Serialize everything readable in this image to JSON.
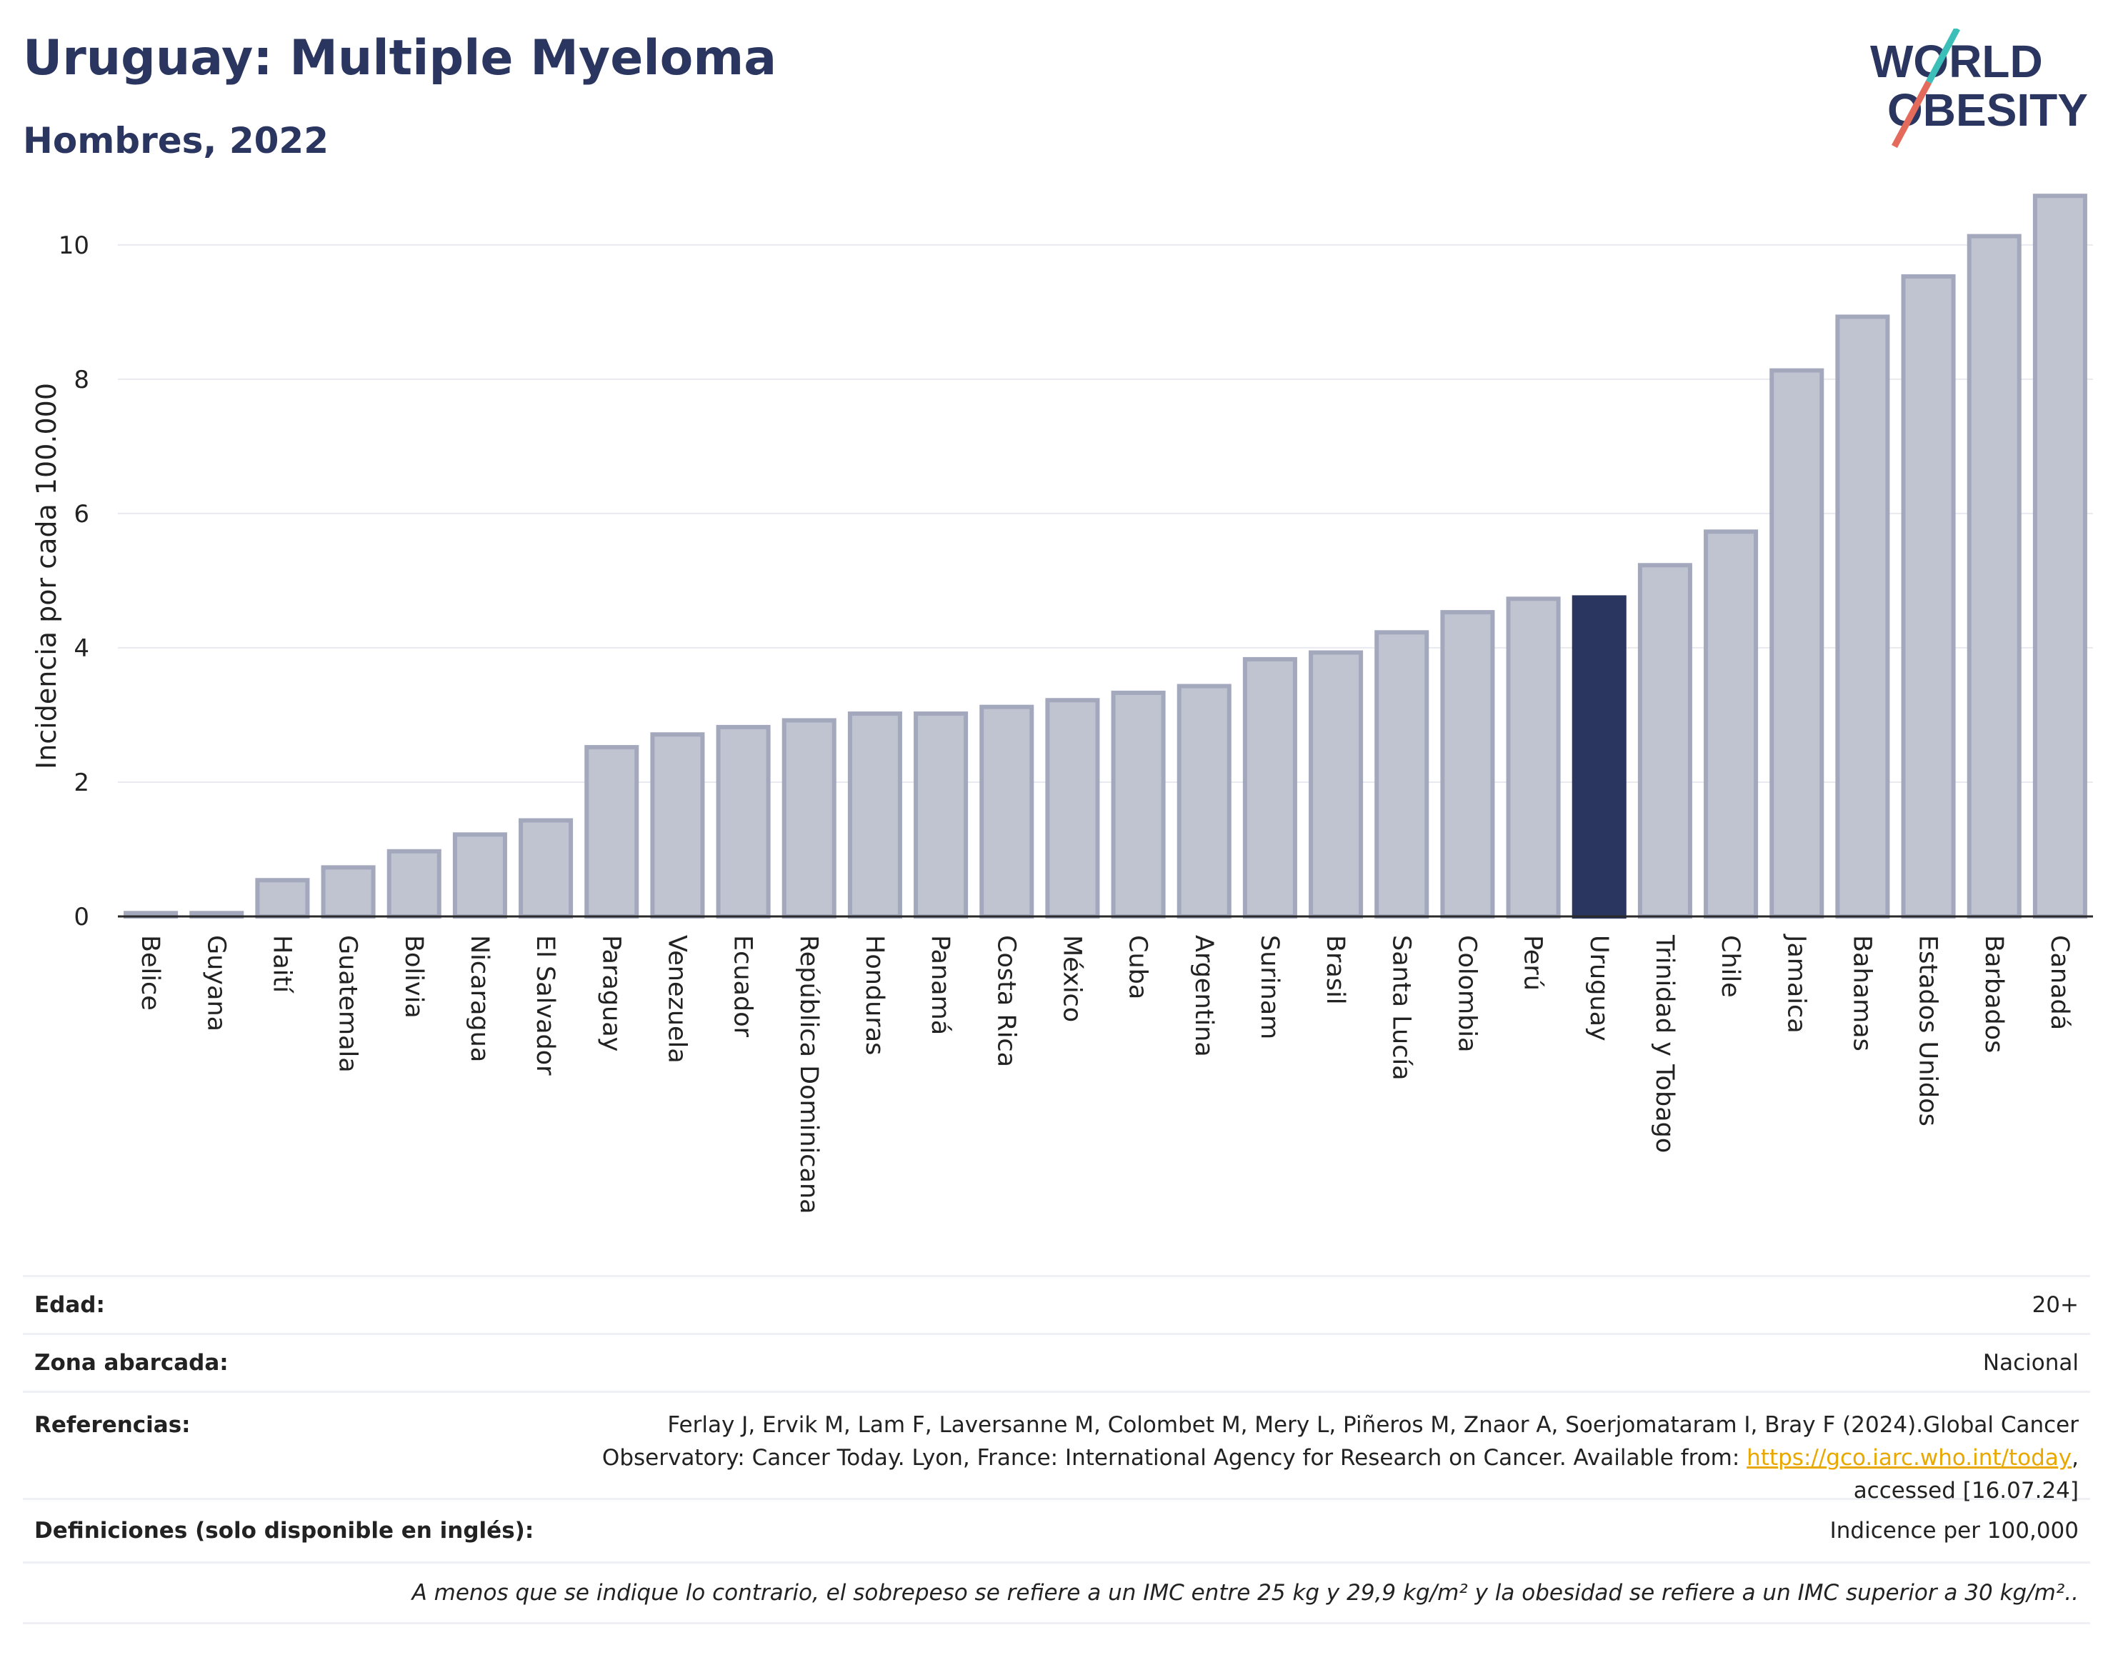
{
  "header": {
    "title": "Uruguay: Multiple Myeloma",
    "subtitle": "Hombres, 2022",
    "logo_line1": "WORLD",
    "logo_line2": "OBESITY"
  },
  "colors": {
    "bar": "#c0c3d0",
    "bar_border": "#a3a8bd",
    "highlight": "#2a3560",
    "title": "#2a3560",
    "link": "#e8a800",
    "logo_teal": "#3bbfb8",
    "logo_red": "#e46a5b"
  },
  "chart_data": {
    "type": "bar",
    "title": "",
    "xlabel": "",
    "ylabel": "Incidencia por cada 100.000",
    "ylim": [
      0,
      11.2
    ],
    "yticks": [
      0,
      2,
      4,
      6,
      8,
      10
    ],
    "grid": true,
    "highlight": "Uruguay",
    "categories": [
      "Belice",
      "Guyana",
      "Haití",
      "Guatemala",
      "Bolivia",
      "Nicaragua",
      "El Salvador",
      "Paraguay",
      "Venezuela",
      "Ecuador",
      "República Dominicana",
      "Honduras",
      "Panamá",
      "Costa Rica",
      "México",
      "Cuba",
      "Argentina",
      "Surinam",
      "Brasil",
      "Santa Lucía",
      "Colombia",
      "Perú",
      "Uruguay",
      "Trinidad y Tobago",
      "Chile",
      "Jamaica",
      "Bahamas",
      "Estados Unidos",
      "Barbados",
      "Canadá"
    ],
    "values": [
      0.05,
      0.05,
      0.54,
      0.73,
      0.97,
      1.22,
      1.43,
      2.52,
      2.71,
      2.82,
      2.92,
      3.02,
      3.02,
      3.12,
      3.22,
      3.33,
      3.43,
      3.83,
      3.93,
      4.23,
      4.53,
      4.73,
      4.75,
      5.23,
      5.73,
      8.13,
      8.93,
      9.53,
      10.13,
      10.73
    ]
  },
  "info": {
    "edad_label": "Edad:",
    "edad_value": "20+",
    "zona_label": "Zona abarcada:",
    "zona_value": "Nacional",
    "ref_label": "Referencias:",
    "ref_text_1": "Ferlay J, Ervik M, Lam F, Laversanne M, Colombet M, Mery L, Piñeros M, Znaor A, Soerjomataram I, Bray F (2024).Global Cancer",
    "ref_text_2": "Observatory: Cancer Today. Lyon, France: International Agency for Research on Cancer. Available from: ",
    "ref_link": "https://gco.iarc.who.int/today",
    "ref_text_3": "accessed [16.07.24]",
    "def_label": "Definiciones (solo disponible en inglés):",
    "def_value": "Indicence per 100,000",
    "footnote": "A menos que se indique lo contrario, el sobrepeso se refiere a un IMC entre 25 kg y 29,9 kg/m² y la obesidad se refiere a un IMC superior a 30 kg/m².."
  }
}
